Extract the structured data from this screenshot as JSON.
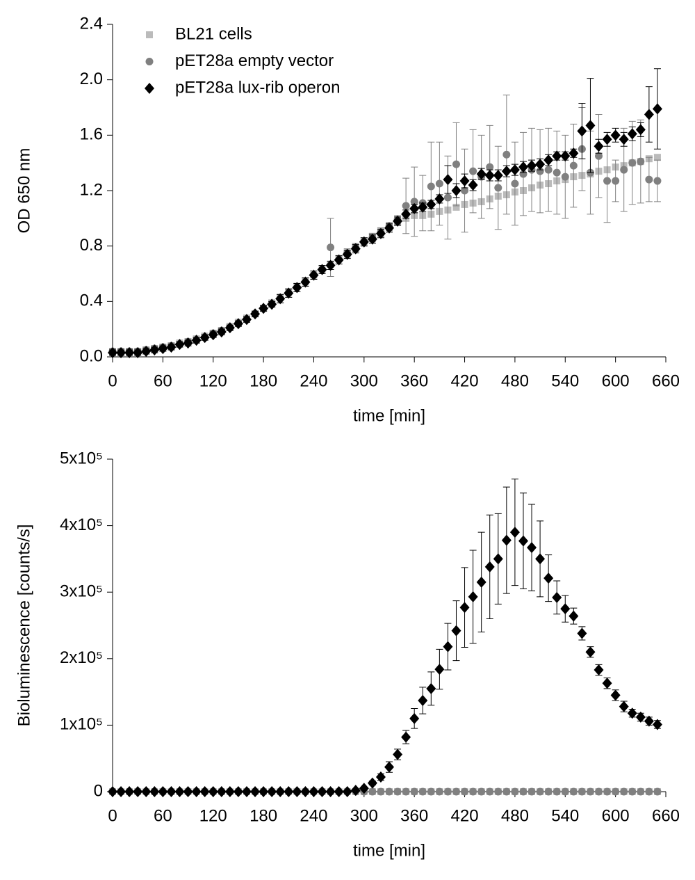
{
  "chart_data": [
    {
      "type": "scatter",
      "ylabel": "OD 650 nm",
      "xlabel": "time [min]",
      "legend": "upper left",
      "xlim": [
        0,
        660
      ],
      "xticks": [
        0,
        60,
        120,
        180,
        240,
        300,
        360,
        420,
        480,
        540,
        600,
        660
      ],
      "ylim": [
        0,
        2.4
      ],
      "yticks": [
        {
          "value": 0,
          "label": "0.0"
        },
        0.4,
        0.8,
        1.2,
        1.6,
        {
          "value": 2,
          "label": "2.0"
        },
        2.4
      ],
      "x": [
        0,
        10,
        20,
        30,
        40,
        50,
        60,
        70,
        80,
        90,
        100,
        110,
        120,
        130,
        140,
        150,
        160,
        170,
        180,
        190,
        200,
        210,
        220,
        230,
        240,
        250,
        260,
        270,
        280,
        290,
        300,
        310,
        320,
        330,
        340,
        350,
        360,
        370,
        380,
        390,
        400,
        410,
        420,
        430,
        440,
        450,
        460,
        470,
        480,
        490,
        500,
        510,
        520,
        530,
        540,
        550,
        560,
        570,
        580,
        590,
        600,
        610,
        620,
        630,
        640,
        650
      ],
      "series": [
        {
          "name": "BL21 cells",
          "color": "#bbbbbb",
          "marker": "square",
          "values": [
            0.04,
            0.04,
            0.04,
            0.04,
            0.05,
            0.06,
            0.07,
            0.08,
            0.1,
            0.11,
            0.13,
            0.15,
            0.17,
            0.19,
            0.22,
            0.25,
            0.28,
            0.31,
            0.35,
            0.39,
            0.43,
            0.47,
            0.51,
            0.55,
            0.59,
            0.63,
            0.67,
            0.71,
            0.75,
            0.79,
            0.83,
            0.87,
            0.91,
            0.94,
            0.97,
            1.0,
            1.02,
            1.02,
            1.03,
            1.05,
            1.06,
            1.08,
            1.1,
            1.11,
            1.12,
            1.14,
            1.16,
            1.17,
            1.19,
            1.2,
            1.22,
            1.24,
            1.25,
            1.27,
            1.28,
            1.3,
            1.31,
            1.32,
            1.34,
            1.35,
            1.37,
            1.38,
            1.4,
            1.41,
            1.43,
            1.44
          ],
          "errors": [
            0.02,
            0.02,
            0.02,
            0.02,
            0.02,
            0.02,
            0.02,
            0.02,
            0.02,
            0.02,
            0.02,
            0.02,
            0.02,
            0.02,
            0.02,
            0.02,
            0.02,
            0.02,
            0.02,
            0.02,
            0.02,
            0.02,
            0.02,
            0.02,
            0.02,
            0.02,
            0.02,
            0.02,
            0.02,
            0.02,
            0.02,
            0.02,
            0.02,
            0.02,
            0.02,
            0.02,
            0.02,
            0.02,
            0.02,
            0.02,
            0.02,
            0.02,
            0.02,
            0.02,
            0.02,
            0.02,
            0.02,
            0.02,
            0.02,
            0.02,
            0.02,
            0.02,
            0.02,
            0.02,
            0.02,
            0.02,
            0.02,
            0.02,
            0.02,
            0.02,
            0.02,
            0.02,
            0.02,
            0.02,
            0.02,
            0.02
          ]
        },
        {
          "name": "pET28a empty vector",
          "color": "#808080",
          "marker": "circle",
          "values": [
            0.04,
            0.04,
            0.04,
            0.04,
            0.05,
            0.06,
            0.07,
            0.08,
            0.09,
            0.11,
            0.12,
            0.14,
            0.17,
            0.19,
            0.21,
            0.24,
            0.27,
            0.31,
            0.35,
            0.38,
            0.42,
            0.46,
            0.5,
            0.54,
            0.59,
            0.63,
            0.79,
            0.7,
            0.75,
            0.79,
            0.83,
            0.86,
            0.9,
            0.94,
            0.99,
            1.09,
            1.12,
            1.11,
            1.23,
            1.25,
            1.15,
            1.39,
            1.2,
            1.34,
            1.3,
            1.37,
            1.22,
            1.46,
            1.25,
            1.32,
            1.35,
            1.34,
            1.35,
            1.33,
            1.3,
            1.38,
            1.5,
            1.33,
            1.45,
            1.27,
            1.27,
            1.35,
            1.4,
            1.41,
            1.28,
            1.27
          ],
          "errors": [
            0.02,
            0.02,
            0.02,
            0.02,
            0.02,
            0.02,
            0.02,
            0.02,
            0.02,
            0.02,
            0.02,
            0.02,
            0.02,
            0.02,
            0.02,
            0.02,
            0.02,
            0.02,
            0.02,
            0.02,
            0.03,
            0.03,
            0.03,
            0.03,
            0.03,
            0.03,
            0.21,
            0.03,
            0.03,
            0.03,
            0.03,
            0.03,
            0.03,
            0.03,
            0.03,
            0.2,
            0.25,
            0.2,
            0.32,
            0.3,
            0.3,
            0.3,
            0.3,
            0.3,
            0.3,
            0.3,
            0.3,
            0.43,
            0.3,
            0.3,
            0.3,
            0.3,
            0.3,
            0.3,
            0.3,
            0.3,
            0.3,
            0.3,
            0.3,
            0.3,
            0.15,
            0.3,
            0.3,
            0.3,
            0.16,
            0.15
          ]
        },
        {
          "name": "pET28a lux-rib operon",
          "color": "#000000",
          "marker": "diamond",
          "values": [
            0.03,
            0.03,
            0.03,
            0.03,
            0.04,
            0.05,
            0.06,
            0.07,
            0.09,
            0.1,
            0.12,
            0.14,
            0.16,
            0.18,
            0.21,
            0.24,
            0.27,
            0.31,
            0.35,
            0.38,
            0.42,
            0.46,
            0.5,
            0.54,
            0.59,
            0.63,
            0.66,
            0.7,
            0.74,
            0.78,
            0.83,
            0.85,
            0.89,
            0.93,
            0.98,
            1.03,
            1.07,
            1.08,
            1.1,
            1.14,
            1.28,
            1.2,
            1.27,
            1.24,
            1.32,
            1.31,
            1.31,
            1.34,
            1.35,
            1.37,
            1.38,
            1.39,
            1.42,
            1.45,
            1.45,
            1.47,
            1.63,
            1.67,
            1.52,
            1.57,
            1.6,
            1.57,
            1.61,
            1.64,
            1.75,
            1.79
          ],
          "errors": [
            0.02,
            0.02,
            0.02,
            0.02,
            0.02,
            0.02,
            0.02,
            0.02,
            0.02,
            0.02,
            0.02,
            0.02,
            0.02,
            0.02,
            0.02,
            0.02,
            0.02,
            0.02,
            0.02,
            0.02,
            0.03,
            0.03,
            0.03,
            0.03,
            0.03,
            0.03,
            0.03,
            0.03,
            0.03,
            0.03,
            0.03,
            0.03,
            0.03,
            0.03,
            0.03,
            0.03,
            0.03,
            0.03,
            0.03,
            0.03,
            0.1,
            0.05,
            0.05,
            0.04,
            0.04,
            0.04,
            0.04,
            0.04,
            0.04,
            0.04,
            0.04,
            0.04,
            0.04,
            0.03,
            0.03,
            0.03,
            0.2,
            0.34,
            0.05,
            0.05,
            0.05,
            0.05,
            0.05,
            0.05,
            0.2,
            0.29
          ]
        }
      ]
    },
    {
      "type": "scatter",
      "ylabel": "Bioluminescence [counts/s]",
      "xlabel": "time [min]",
      "xlim": [
        0,
        660
      ],
      "xticks": [
        0,
        60,
        120,
        180,
        240,
        300,
        360,
        420,
        480,
        540,
        600,
        660
      ],
      "ylim": [
        0,
        500000
      ],
      "yticks": [
        0,
        {
          "value": 100000,
          "label": "1x10⁵"
        },
        {
          "value": 200000,
          "label": "2x10⁵"
        },
        {
          "value": 300000,
          "label": "3x10⁵"
        },
        {
          "value": 400000,
          "label": "4x10⁵"
        },
        {
          "value": 500000,
          "label": "5x10⁵"
        }
      ],
      "x": [
        0,
        10,
        20,
        30,
        40,
        50,
        60,
        70,
        80,
        90,
        100,
        110,
        120,
        130,
        140,
        150,
        160,
        170,
        180,
        190,
        200,
        210,
        220,
        230,
        240,
        250,
        260,
        270,
        280,
        290,
        300,
        310,
        320,
        330,
        340,
        350,
        360,
        370,
        380,
        390,
        400,
        410,
        420,
        430,
        440,
        450,
        460,
        470,
        480,
        490,
        500,
        510,
        520,
        530,
        540,
        550,
        560,
        570,
        580,
        590,
        600,
        610,
        620,
        630,
        640,
        650
      ],
      "series": [
        {
          "color": "#bbbbbb",
          "marker": "square",
          "values": [
            0,
            0,
            0,
            0,
            0,
            0,
            0,
            0,
            0,
            0,
            0,
            0,
            0,
            0,
            0,
            0,
            0,
            0,
            0,
            0,
            0,
            0,
            0,
            0,
            0,
            0,
            0,
            0,
            0,
            0,
            0,
            0,
            0,
            0,
            0,
            0,
            0,
            0,
            0,
            0,
            0,
            0,
            0,
            0,
            0,
            0,
            0,
            0,
            0,
            0,
            0,
            0,
            0,
            0,
            0,
            0,
            0,
            0,
            0,
            0,
            0,
            0,
            0,
            0,
            0,
            0
          ]
        },
        {
          "color": "#808080",
          "marker": "circle",
          "values": [
            0,
            0,
            0,
            0,
            0,
            0,
            0,
            0,
            0,
            0,
            0,
            0,
            0,
            0,
            0,
            0,
            0,
            0,
            0,
            0,
            0,
            0,
            0,
            0,
            0,
            0,
            0,
            0,
            0,
            0,
            0,
            0,
            0,
            0,
            0,
            0,
            0,
            0,
            0,
            0,
            0,
            0,
            0,
            0,
            0,
            0,
            0,
            0,
            0,
            0,
            0,
            0,
            0,
            0,
            0,
            0,
            0,
            0,
            0,
            0,
            0,
            0,
            0,
            0,
            0,
            0
          ]
        },
        {
          "color": "#000000",
          "marker": "diamond",
          "values": [
            0,
            0,
            0,
            0,
            0,
            0,
            0,
            0,
            0,
            0,
            0,
            0,
            0,
            0,
            0,
            0,
            0,
            0,
            0,
            0,
            0,
            0,
            0,
            0,
            0,
            0,
            0,
            0,
            0,
            2000,
            5000,
            13000,
            22000,
            37000,
            56000,
            82000,
            110000,
            137000,
            155000,
            184000,
            218000,
            242000,
            277000,
            293000,
            315000,
            338000,
            350000,
            378000,
            390000,
            377000,
            367000,
            350000,
            321000,
            292000,
            275000,
            264000,
            238000,
            210000,
            183000,
            163000,
            145000,
            128000,
            118000,
            112000,
            106000,
            101000
          ],
          "errors": [
            0,
            0,
            0,
            0,
            0,
            0,
            0,
            0,
            0,
            0,
            0,
            0,
            0,
            0,
            0,
            0,
            0,
            0,
            0,
            0,
            0,
            0,
            0,
            0,
            0,
            0,
            0,
            0,
            0,
            0,
            1000,
            3000,
            5000,
            8000,
            8000,
            10000,
            15000,
            20000,
            25000,
            30000,
            35000,
            45000,
            60000,
            70000,
            75000,
            78000,
            68000,
            80000,
            80000,
            72000,
            65000,
            57000,
            35000,
            25000,
            20000,
            12000,
            10000,
            8000,
            8000,
            8000,
            8000,
            8000,
            6000,
            6000,
            6000,
            6000
          ]
        }
      ]
    }
  ]
}
